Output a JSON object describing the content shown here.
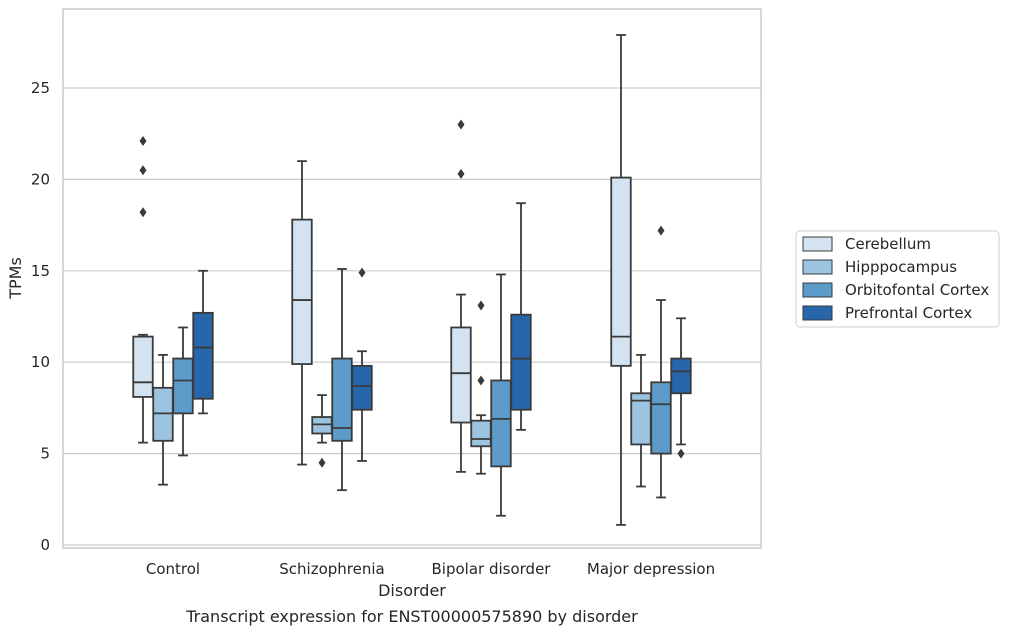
{
  "chart_data": {
    "type": "boxplot",
    "xlabel": "Disorder",
    "ylabel": "TPMs",
    "caption": "Transcript expression for ENST00000575890 by disorder",
    "ylim": [
      -0.3,
      29
    ],
    "yticks": [
      0,
      5,
      10,
      15,
      20,
      25
    ],
    "grid": "horizontal",
    "legend_position": "right",
    "categories": [
      "Control",
      "Schizophrenia",
      "Bipolar disorder",
      "Major depression"
    ],
    "series": [
      {
        "name": "Cerebellum",
        "color": "#d4e3f2",
        "boxes": [
          {
            "whislo": 5.6,
            "q1": 8.1,
            "med": 8.9,
            "q3": 11.4,
            "whishi": 11.5,
            "fliers": [
              18.2,
              20.5,
              22.1
            ]
          },
          {
            "whislo": 4.4,
            "q1": 9.9,
            "med": 13.4,
            "q3": 17.8,
            "whishi": 21.0,
            "fliers": []
          },
          {
            "whislo": 4.0,
            "q1": 6.7,
            "med": 9.4,
            "q3": 11.9,
            "whishi": 13.7,
            "fliers": [
              20.3,
              23.0
            ]
          },
          {
            "whislo": 1.1,
            "q1": 9.8,
            "med": 11.4,
            "q3": 20.1,
            "whishi": 27.9,
            "fliers": []
          }
        ]
      },
      {
        "name": "Hipppocampus",
        "color": "#9cc4e0",
        "boxes": [
          {
            "whislo": 3.3,
            "q1": 5.7,
            "med": 7.2,
            "q3": 8.6,
            "whishi": 10.4,
            "fliers": []
          },
          {
            "whislo": 5.6,
            "q1": 6.1,
            "med": 6.6,
            "q3": 7.0,
            "whishi": 8.2,
            "fliers": [
              4.5
            ]
          },
          {
            "whislo": 3.9,
            "q1": 5.4,
            "med": 5.8,
            "q3": 6.8,
            "whishi": 7.1,
            "fliers": [
              9.0,
              13.1
            ]
          },
          {
            "whislo": 3.2,
            "q1": 5.5,
            "med": 7.9,
            "q3": 8.3,
            "whishi": 10.4,
            "fliers": []
          }
        ]
      },
      {
        "name": "Orbitofontal Cortex",
        "color": "#5d9cca",
        "boxes": [
          {
            "whislo": 4.9,
            "q1": 7.2,
            "med": 9.0,
            "q3": 10.2,
            "whishi": 11.9,
            "fliers": []
          },
          {
            "whislo": 3.0,
            "q1": 5.7,
            "med": 6.4,
            "q3": 10.2,
            "whishi": 15.1,
            "fliers": []
          },
          {
            "whislo": 1.6,
            "q1": 4.3,
            "med": 6.9,
            "q3": 9.0,
            "whishi": 14.8,
            "fliers": []
          },
          {
            "whislo": 2.6,
            "q1": 5.0,
            "med": 7.7,
            "q3": 8.9,
            "whishi": 13.4,
            "fliers": [
              17.2
            ]
          }
        ]
      },
      {
        "name": "Prefrontal Cortex",
        "color": "#2766aa",
        "boxes": [
          {
            "whislo": 7.2,
            "q1": 8.0,
            "med": 10.8,
            "q3": 12.7,
            "whishi": 15.0,
            "fliers": []
          },
          {
            "whislo": 4.6,
            "q1": 7.4,
            "med": 8.7,
            "q3": 9.8,
            "whishi": 10.6,
            "fliers": [
              14.9
            ]
          },
          {
            "whislo": 6.3,
            "q1": 7.4,
            "med": 10.2,
            "q3": 12.6,
            "whishi": 18.7,
            "fliers": []
          },
          {
            "whislo": 5.5,
            "q1": 8.3,
            "med": 9.5,
            "q3": 10.2,
            "whishi": 12.4,
            "fliers": [
              5.0
            ]
          }
        ]
      }
    ]
  }
}
